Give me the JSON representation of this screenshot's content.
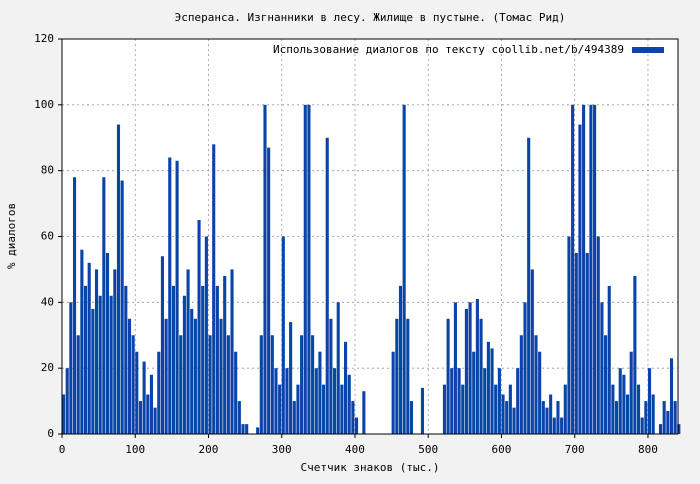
{
  "chart_data": {
    "type": "bar",
    "title": "Эсперанса. Изгнанники в лесу. Жилище в пустыне. (Томас Рид)",
    "x_label": "Счетчик знаков (тыс.)",
    "y_label": "% диалогов",
    "x": [
      0,
      5,
      10,
      15,
      20,
      25,
      30,
      35,
      40,
      45,
      50,
      55,
      60,
      65,
      70,
      75,
      80,
      85,
      90,
      95,
      100,
      105,
      110,
      115,
      120,
      125,
      130,
      135,
      140,
      145,
      150,
      155,
      160,
      165,
      170,
      175,
      180,
      185,
      190,
      195,
      200,
      205,
      210,
      215,
      220,
      225,
      230,
      235,
      240,
      245,
      250,
      255,
      260,
      265,
      270,
      275,
      280,
      285,
      290,
      295,
      300,
      305,
      310,
      315,
      320,
      325,
      330,
      335,
      340,
      345,
      350,
      355,
      360,
      365,
      370,
      375,
      380,
      385,
      390,
      395,
      400,
      405,
      410,
      415,
      420,
      425,
      430,
      435,
      440,
      445,
      450,
      455,
      460,
      465,
      470,
      475,
      480,
      485,
      490,
      495,
      500,
      505,
      510,
      515,
      520,
      525,
      530,
      535,
      540,
      545,
      550,
      555,
      560,
      565,
      570,
      575,
      580,
      585,
      590,
      595,
      600,
      605,
      610,
      615,
      620,
      625,
      630,
      635,
      640,
      645,
      650,
      655,
      660,
      665,
      670,
      675,
      680,
      685,
      690,
      695,
      700,
      705,
      710,
      715,
      720,
      725,
      730,
      735,
      740,
      745,
      750,
      755,
      760,
      765,
      770,
      775,
      780,
      785,
      790,
      795,
      800,
      805,
      810,
      815,
      820,
      825,
      830,
      835,
      840
    ],
    "series": [
      {
        "name": "Использование диалогов по тексту  coollib.net/b/494389",
        "color": "#0b44a8",
        "values": [
          12,
          20,
          40,
          78,
          30,
          56,
          45,
          52,
          38,
          50,
          42,
          78,
          55,
          42,
          50,
          94,
          77,
          45,
          35,
          30,
          25,
          10,
          22,
          12,
          18,
          8,
          25,
          54,
          35,
          84,
          45,
          83,
          30,
          42,
          50,
          38,
          35,
          65,
          45,
          60,
          30,
          88,
          45,
          35,
          48,
          30,
          50,
          25,
          10,
          3,
          3,
          0,
          0,
          2,
          30,
          100,
          87,
          30,
          20,
          15,
          60,
          20,
          34,
          10,
          15,
          30,
          100,
          100,
          30,
          20,
          25,
          15,
          90,
          35,
          20,
          40,
          15,
          28,
          18,
          10,
          5,
          0,
          13,
          0,
          0,
          0,
          0,
          0,
          0,
          0,
          25,
          35,
          45,
          100,
          35,
          10,
          0,
          0,
          14,
          0,
          0,
          0,
          0,
          0,
          15,
          35,
          20,
          40,
          20,
          15,
          38,
          40,
          25,
          41,
          35,
          20,
          28,
          26,
          15,
          20,
          12,
          10,
          15,
          8,
          20,
          30,
          40,
          90,
          50,
          30,
          25,
          10,
          8,
          12,
          5,
          10,
          5,
          15,
          60,
          100,
          55,
          94,
          100,
          55,
          100,
          100,
          60,
          40,
          30,
          45,
          15,
          10,
          20,
          18,
          12,
          25,
          48,
          15,
          5,
          10,
          20,
          12,
          0,
          3,
          10,
          7,
          23,
          10,
          3
        ]
      }
    ],
    "xlim": [
      0,
      841
    ],
    "ylim": [
      0,
      120
    ],
    "xticks": [
      0,
      100,
      200,
      300,
      400,
      500,
      600,
      700,
      800
    ],
    "yticks": [
      0,
      20,
      40,
      60,
      80,
      100,
      120
    ],
    "grid": true,
    "legend": "upper right"
  }
}
